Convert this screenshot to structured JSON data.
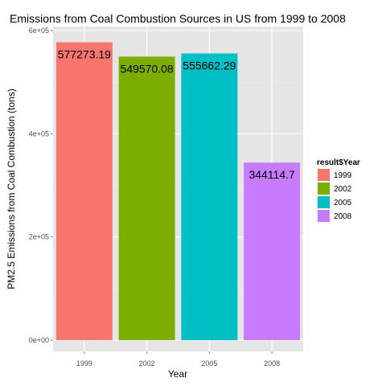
{
  "chart_data": {
    "type": "bar",
    "title": "Emissions from Coal Combustion Sources in US from 1999 to 2008",
    "xlabel": "Year",
    "ylabel": "PM2.5 Emissions from Coal Combustion (tons)",
    "categories": [
      "1999",
      "2002",
      "2005",
      "2008"
    ],
    "values": [
      577273.19,
      549570.08,
      555662.29,
      344114.7
    ],
    "data_labels": [
      "577273.19",
      "549570.08",
      "555662.29",
      "344114.7"
    ],
    "colors": [
      "#F8766D",
      "#7CAE00",
      "#00BFC4",
      "#C77CFF"
    ],
    "ylim": [
      0,
      600000
    ],
    "y_ticks": [
      0,
      200000,
      400000,
      600000
    ],
    "y_tick_labels": [
      "0e+00",
      "2e+05",
      "4e+05",
      "6e+05"
    ],
    "grid": true,
    "panel_background": "#E5E5E5",
    "legend": {
      "title": "result$Year",
      "placement": "right",
      "entries": [
        "1999",
        "2002",
        "2005",
        "2008"
      ]
    }
  }
}
